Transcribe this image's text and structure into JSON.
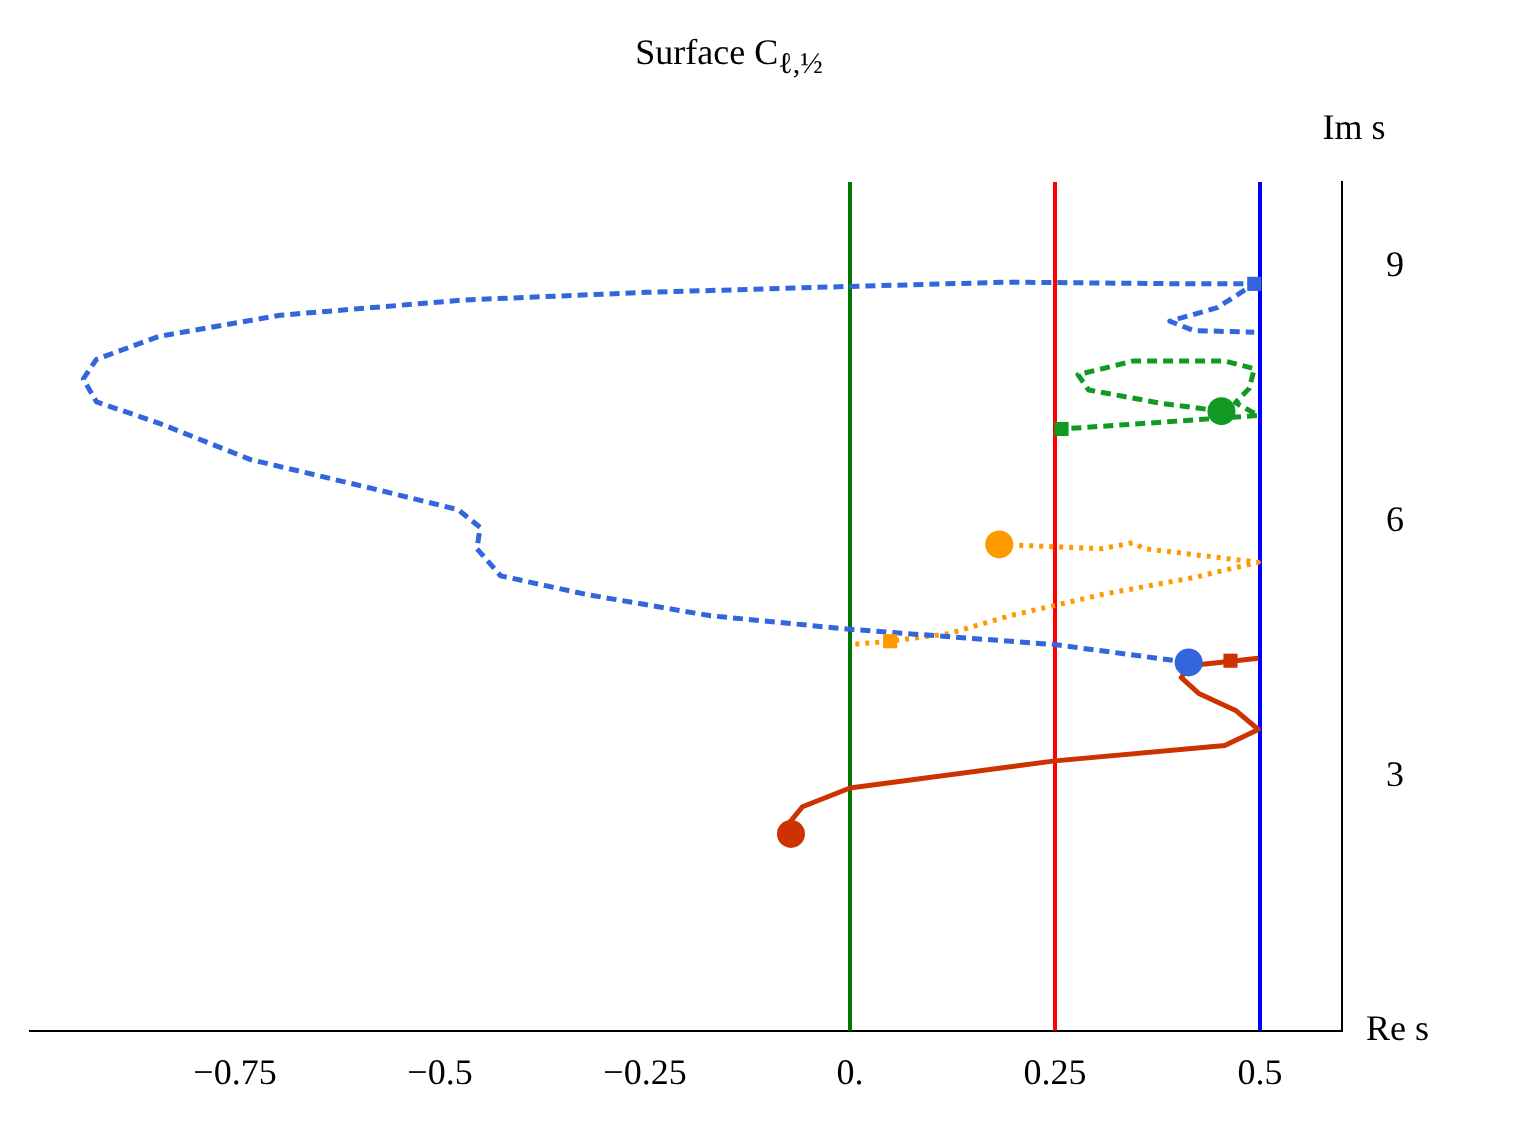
{
  "chart_data": {
    "type": "line",
    "title": "Surface C$_{ℓ,½}$",
    "xlabel": "Re s",
    "ylabel": "Im s",
    "xlim": [
      -1,
      0.6
    ],
    "ylim": [
      0,
      10
    ],
    "xticks": [
      {
        "value": -0.75,
        "label": "−0.75"
      },
      {
        "value": -0.5,
        "label": "−0.5"
      },
      {
        "value": -0.25,
        "label": "−0.25"
      },
      {
        "value": 0,
        "label": "0."
      },
      0.25,
      0.5
    ],
    "yticks": [
      3,
      6,
      9
    ],
    "grid": false,
    "legend": false,
    "ref_lines": [
      {
        "axis": "x",
        "value": 0,
        "color": "#007700"
      },
      {
        "axis": "x",
        "value": 0.25,
        "color": "#ff0000"
      },
      {
        "axis": "x",
        "value": 0.5,
        "color": "#0000ff"
      }
    ],
    "series": [
      {
        "type": "line",
        "color": "#cc3300",
        "marker": "none",
        "line_style": "solid",
        "x": [
          -0.072,
          -0.074,
          -0.058,
          0,
          0.25,
          0.457,
          0.498,
          0.471,
          0.426,
          0.404,
          0.413,
          0.462,
          0.498
        ],
        "values": [
          2.32,
          2.45,
          2.64,
          2.86,
          3.18,
          3.36,
          3.55,
          3.77,
          3.97,
          4.16,
          4.3,
          4.35,
          4.39
        ]
      },
      {
        "type": "line",
        "color": "#3366dd",
        "marker": "none",
        "line_style": "dashed",
        "x": [
          0.413,
          0.25,
          0,
          -0.17,
          -0.321,
          -0.426,
          -0.455,
          -0.451,
          -0.478,
          -0.583,
          -0.731,
          -0.843,
          -0.919,
          -0.935,
          -0.919,
          -0.843,
          -0.695,
          -0.471,
          -0.247,
          0,
          0.195,
          0.419,
          0.493,
          0.448,
          0.39,
          0.419,
          0.493
        ],
        "values": [
          4.34,
          4.55,
          4.73,
          4.89,
          5.14,
          5.36,
          5.68,
          5.93,
          6.14,
          6.39,
          6.73,
          7.16,
          7.41,
          7.68,
          7.91,
          8.18,
          8.43,
          8.61,
          8.7,
          8.77,
          8.82,
          8.8,
          8.8,
          8.52,
          8.36,
          8.25,
          8.23
        ]
      },
      {
        "type": "line",
        "color": "#119922",
        "marker": "none",
        "line_style": "dashed",
        "x": [
          0.453,
          0.381,
          0.291,
          0.278,
          0.345,
          0.457,
          0.493,
          0.487,
          0.47,
          0.498,
          0.38,
          0.258
        ],
        "values": [
          7.3,
          7.39,
          7.55,
          7.73,
          7.89,
          7.89,
          7.8,
          7.57,
          7.4,
          7.25,
          7.17,
          7.09
        ]
      },
      {
        "type": "line",
        "color": "#ff9900",
        "marker": "none",
        "line_style": "dotted",
        "x": [
          0.182,
          0.307,
          0.345,
          0.359,
          0.498,
          0.419,
          0.307,
          0.195,
          0.121,
          0.049,
          0
        ],
        "values": [
          5.73,
          5.68,
          5.75,
          5.68,
          5.52,
          5.34,
          5.14,
          4.89,
          4.68,
          4.59,
          4.55
        ]
      },
      {
        "type": "scatter",
        "marker": "circle",
        "colors": [
          "#cc3300",
          "#3366dd",
          "#119922",
          "#ff9900"
        ],
        "x": [
          -0.072,
          0.413,
          0.453,
          0.182
        ],
        "values": [
          2.32,
          4.34,
          7.3,
          5.73
        ]
      },
      {
        "type": "scatter",
        "marker": "square",
        "colors": [
          "#cc3300",
          "#3366dd",
          "#119922",
          "#ff9900"
        ],
        "x": [
          0.464,
          0.493,
          0.258,
          0.049
        ],
        "values": [
          4.36,
          8.8,
          7.09,
          4.59
        ]
      }
    ]
  }
}
